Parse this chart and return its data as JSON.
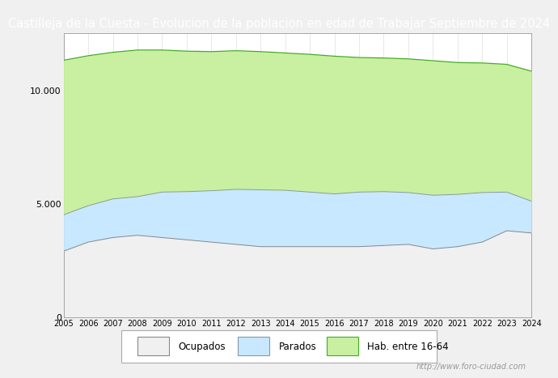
{
  "title": "Castilleja de la Cuesta - Evolucion de la poblacion en edad de Trabajar Septiembre de 2024",
  "title_bg": "#4080c0",
  "title_color": "white",
  "title_fontsize": 10.5,
  "watermark": "http://www.foro-ciudad.com",
  "legend_labels": [
    "Ocupados",
    "Parados",
    "Hab. entre 16-64"
  ],
  "years": [
    2005,
    2006,
    2007,
    2008,
    2009,
    2010,
    2011,
    2012,
    2013,
    2014,
    2015,
    2016,
    2017,
    2018,
    2019,
    2020,
    2021,
    2022,
    2023,
    2024
  ],
  "hab_16_64": [
    11300,
    11500,
    11650,
    11750,
    11750,
    11700,
    11680,
    11720,
    11680,
    11620,
    11560,
    11480,
    11420,
    11400,
    11360,
    11280,
    11200,
    11180,
    11120,
    10820
  ],
  "parados": [
    4500,
    4900,
    5200,
    5300,
    5500,
    5520,
    5560,
    5620,
    5600,
    5580,
    5500,
    5420,
    5500,
    5520,
    5480,
    5360,
    5400,
    5480,
    5500,
    5100
  ],
  "ocupados": [
    2900,
    3300,
    3500,
    3600,
    3500,
    3400,
    3300,
    3200,
    3100,
    3100,
    3100,
    3100,
    3100,
    3150,
    3200,
    3000,
    3100,
    3300,
    3800,
    3700
  ],
  "color_hab": "#c8f0a0",
  "color_hab_line": "#44aa22",
  "color_parados": "#c8e8ff",
  "color_parados_line": "#8899aa",
  "color_ocupados": "#f0f0f0",
  "color_ocupados_line": "#888888",
  "ylim": [
    0,
    12500
  ],
  "yticks": [
    0,
    5000,
    10000
  ],
  "ytick_labels": [
    "0",
    "5.000",
    "10.000"
  ],
  "bg_color": "#f0f0f0",
  "plot_bg": "#ffffff"
}
